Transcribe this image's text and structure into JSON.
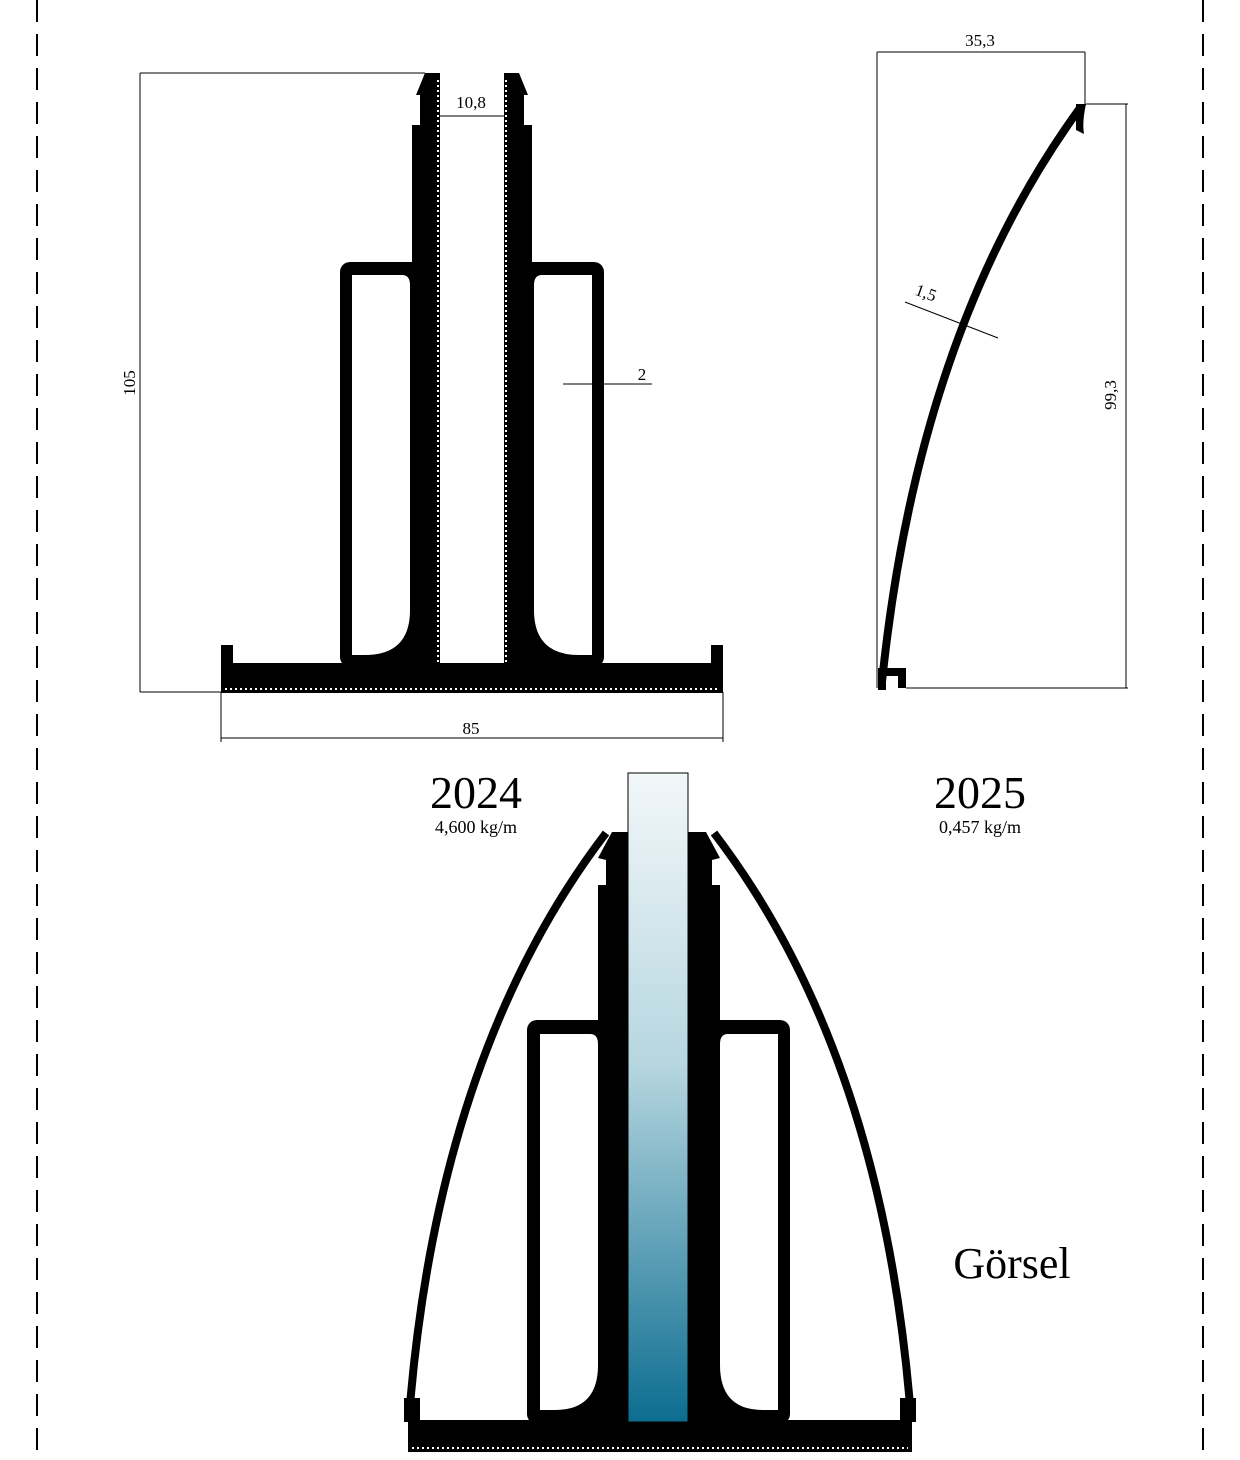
{
  "profiles": [
    {
      "code": "2024",
      "weight": "4,600 kg/m",
      "dimensions": {
        "height": "105",
        "gap": "10,8",
        "wall": "2",
        "width": "85"
      }
    },
    {
      "code": "2025",
      "weight": "0,457 kg/m",
      "dimensions": {
        "width": "35,3",
        "thickness": "1,5",
        "height": "99,3"
      }
    }
  ],
  "assembly": {
    "label": "Görsel"
  }
}
